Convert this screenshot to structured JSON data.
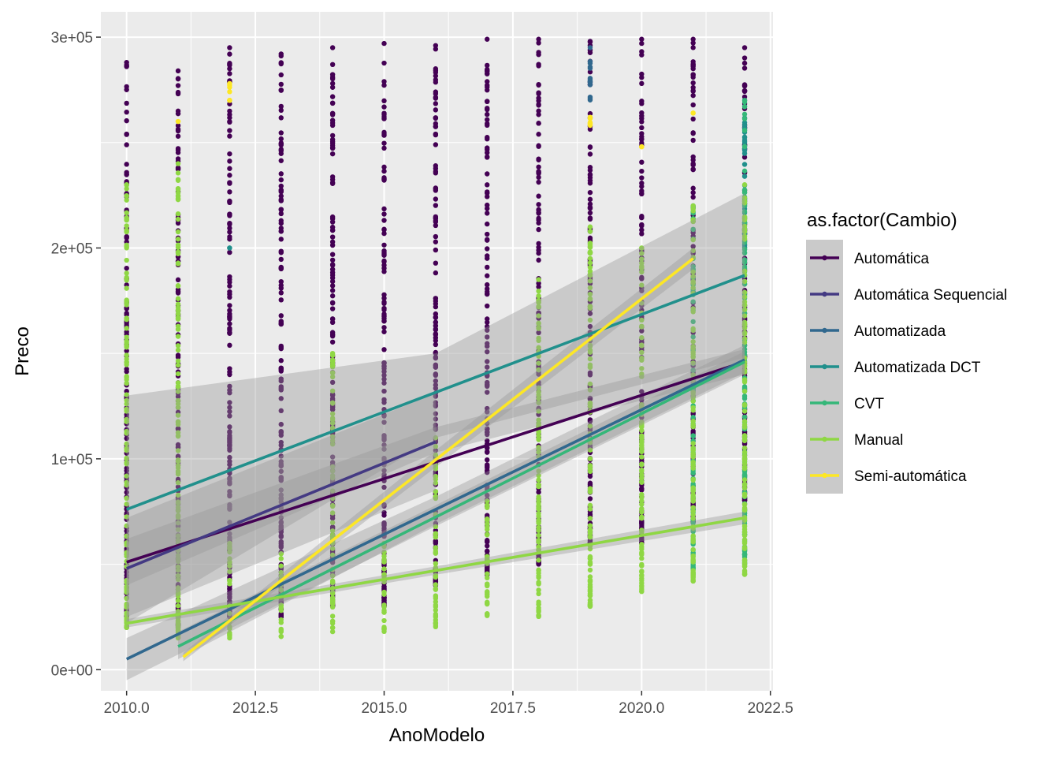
{
  "chart_data": {
    "type": "scatter",
    "xlabel": "AnoModelo",
    "ylabel": "Preco",
    "xlim": [
      2009.5,
      2022.55
    ],
    "ylim": [
      -10000,
      312000
    ],
    "x_ticks": [
      2010.0,
      2012.5,
      2015.0,
      2017.5,
      2020.0,
      2022.5
    ],
    "x_tick_labels": [
      "2010.0",
      "2012.5",
      "2015.0",
      "2017.5",
      "2020.0",
      "2022.5"
    ],
    "y_ticks": [
      0,
      100000,
      200000,
      300000
    ],
    "y_tick_labels": [
      "0e+00",
      "1e+05",
      "2e+05",
      "3e+05"
    ],
    "grid": true,
    "legend": {
      "title": "as.factor(Cambio)",
      "placement": "right"
    },
    "smoothing": "linear fit with grey confidence band per series",
    "series": [
      {
        "name": "Automática",
        "color": "#440154",
        "points": [
          {
            "x": 2010,
            "min": 20000,
            "max": 288000
          },
          {
            "x": 2011,
            "min": 20000,
            "max": 284000
          },
          {
            "x": 2012,
            "min": 25000,
            "max": 295000
          },
          {
            "x": 2013,
            "min": 25000,
            "max": 292000
          },
          {
            "x": 2014,
            "min": 30000,
            "max": 295000
          },
          {
            "x": 2015,
            "min": 30000,
            "max": 297000
          },
          {
            "x": 2016,
            "min": 40000,
            "max": 296000
          },
          {
            "x": 2017,
            "min": 45000,
            "max": 299000
          },
          {
            "x": 2018,
            "min": 50000,
            "max": 299000
          },
          {
            "x": 2019,
            "min": 60000,
            "max": 298000
          },
          {
            "x": 2020,
            "min": 60000,
            "max": 299000
          },
          {
            "x": 2021,
            "min": 70000,
            "max": 299000
          },
          {
            "x": 2022,
            "min": 80000,
            "max": 295000
          }
        ],
        "fit": {
          "x": [
            2010,
            2022
          ],
          "y": [
            51000,
            146000
          ],
          "band": [
            [
              2010,
              40000,
              62000
            ],
            [
              2016,
              103000,
              115000
            ],
            [
              2022,
              140000,
              152000
            ]
          ]
        }
      },
      {
        "name": "Automática Sequencial",
        "color": "#443A83",
        "points": [],
        "fit": {
          "x": [
            2010,
            2016
          ],
          "y": [
            48000,
            108000
          ],
          "band": [
            [
              2010,
              25000,
              72000
            ],
            [
              2016,
              85000,
              131000
            ]
          ]
        }
      },
      {
        "name": "Automatizada",
        "color": "#31688E",
        "points": [
          {
            "x": 2019,
            "min": 270000,
            "max": 295000
          }
        ],
        "fit": {
          "x": [
            2010,
            2022
          ],
          "y": [
            5000,
            147000
          ],
          "band": [
            [
              2010,
              -5000,
              15000
            ],
            [
              2016,
              68000,
              82000
            ],
            [
              2022,
              140000,
              154000
            ]
          ]
        }
      },
      {
        "name": "Automatizada DCT",
        "color": "#21908C",
        "points": [
          {
            "x": 2012,
            "min": 200000,
            "max": 200000
          },
          {
            "x": 2022,
            "min": 200000,
            "max": 270000
          }
        ],
        "fit": {
          "x": [
            2010,
            2022
          ],
          "y": [
            76000,
            187000
          ],
          "band": [
            [
              2010,
              22000,
              130000
            ],
            [
              2016,
              110000,
              150000
            ],
            [
              2022,
              148000,
              226000
            ]
          ]
        }
      },
      {
        "name": "CVT",
        "color": "#35B779",
        "points": [
          {
            "x": 2021,
            "min": 45000,
            "max": 220000
          },
          {
            "x": 2022,
            "min": 50000,
            "max": 270000
          }
        ],
        "fit": {
          "x": [
            2011,
            2022
          ],
          "y": [
            11000,
            146000
          ],
          "band": [
            [
              2011,
              5000,
              18000
            ],
            [
              2016,
              69000,
              78000
            ],
            [
              2022,
              141000,
              151000
            ]
          ]
        }
      },
      {
        "name": "Manual",
        "color": "#8FD744",
        "points": [
          {
            "x": 2010,
            "min": 20000,
            "max": 230000
          },
          {
            "x": 2011,
            "min": 15000,
            "max": 240000
          },
          {
            "x": 2012,
            "min": 15000,
            "max": 60000
          },
          {
            "x": 2013,
            "min": 15000,
            "max": 55000
          },
          {
            "x": 2014,
            "min": 18000,
            "max": 150000
          },
          {
            "x": 2015,
            "min": 18000,
            "max": 60000
          },
          {
            "x": 2016,
            "min": 20000,
            "max": 110000
          },
          {
            "x": 2017,
            "min": 25000,
            "max": 80000
          },
          {
            "x": 2018,
            "min": 25000,
            "max": 185000
          },
          {
            "x": 2019,
            "min": 30000,
            "max": 210000
          },
          {
            "x": 2020,
            "min": 37000,
            "max": 200000
          },
          {
            "x": 2021,
            "min": 42000,
            "max": 220000
          },
          {
            "x": 2022,
            "min": 45000,
            "max": 230000
          }
        ],
        "fit": {
          "x": [
            2010,
            2022
          ],
          "y": [
            22000,
            72000
          ],
          "band": [
            [
              2010,
              20000,
              24000
            ],
            [
              2016,
              45000,
              49000
            ],
            [
              2022,
              69000,
              75000
            ]
          ]
        }
      },
      {
        "name": "Semi-automática",
        "color": "#FDE725",
        "points": [
          {
            "x": 2011,
            "min": 260000,
            "max": 260000
          },
          {
            "x": 2012,
            "min": 270000,
            "max": 278000
          },
          {
            "x": 2019,
            "min": 258000,
            "max": 262000
          },
          {
            "x": 2020,
            "min": 248000,
            "max": 248000
          },
          {
            "x": 2021,
            "min": 264000,
            "max": 264000
          }
        ],
        "fit": {
          "x": [
            2011.1,
            2021
          ],
          "y": [
            6000,
            195000
          ],
          "band": [
            [
              2011.1,
              4000,
              8000
            ],
            [
              2016,
              96000,
              104000
            ],
            [
              2021,
              190000,
              200000
            ]
          ]
        }
      }
    ]
  }
}
